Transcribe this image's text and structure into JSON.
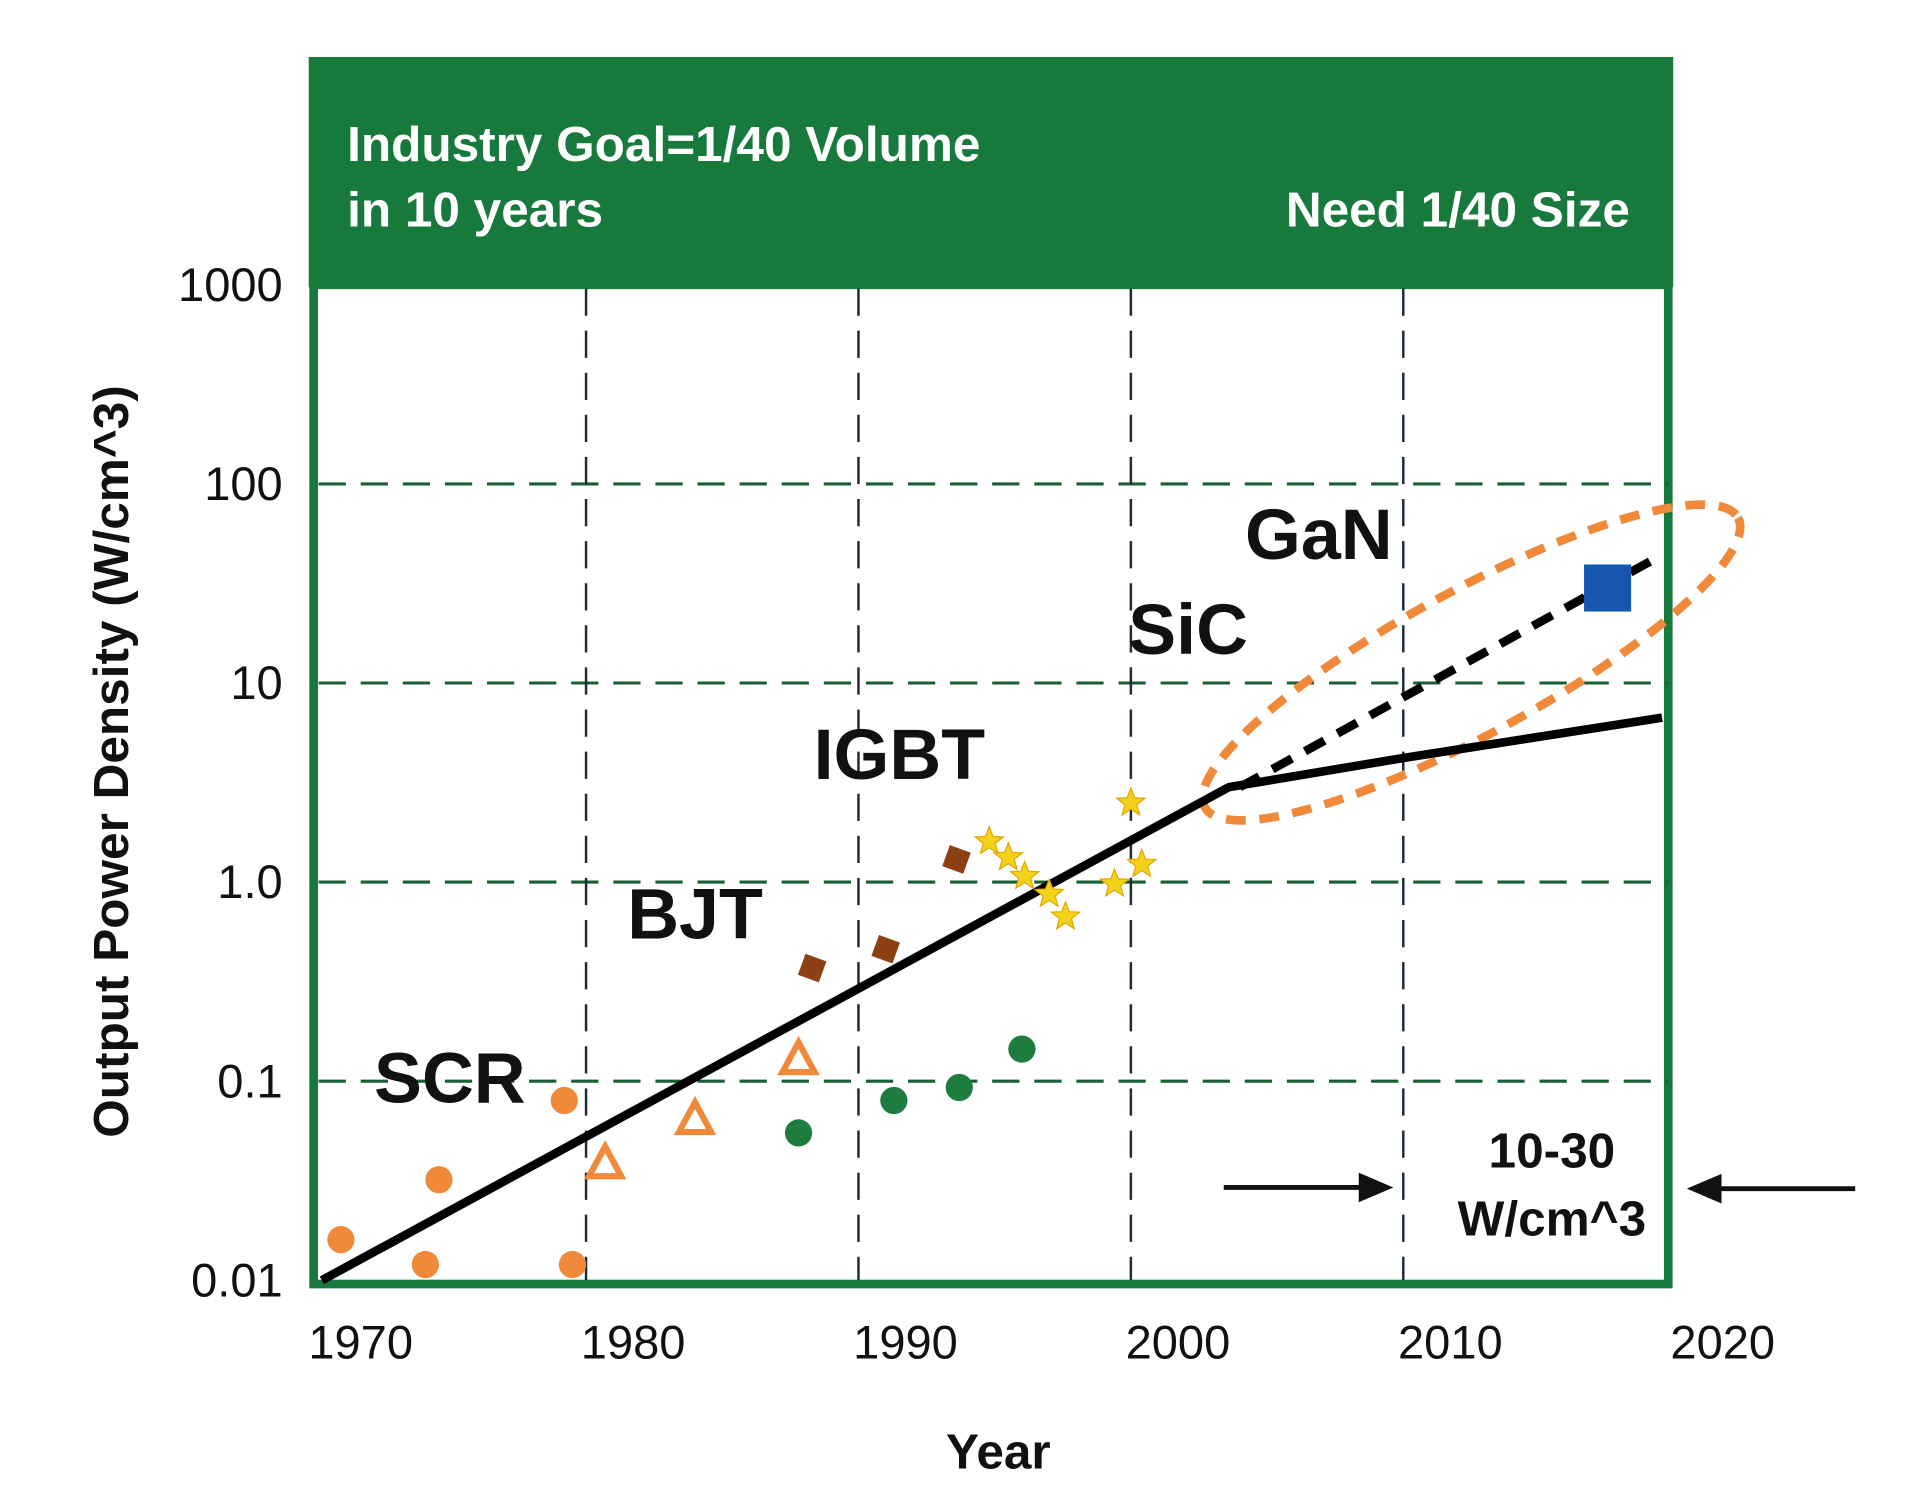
{
  "chart_data": {
    "type": "scatter",
    "header": {
      "left_line1": "Industry Goal=1/40 Volume",
      "left_line2": "in 10 years",
      "right": "Need 1/40 Size"
    },
    "xlabel": "Year",
    "ylabel": "Output Power Density (W/cm^3)",
    "xlim": [
      1970,
      2020
    ],
    "ylim": [
      0.01,
      1000
    ],
    "yscale": "log",
    "grid": true,
    "x_ticks": [
      "1970",
      "1980",
      "1990",
      "2000",
      "2010",
      "2020"
    ],
    "y_ticks": [
      {
        "value": 1000,
        "label": "1000"
      },
      {
        "value": 100,
        "label": "100"
      },
      {
        "value": 10,
        "label": "10"
      },
      {
        "value": 1,
        "label": "1.0"
      },
      {
        "value": 0.1,
        "label": "0.1"
      },
      {
        "value": 0.01,
        "label": "0.01"
      }
    ],
    "series": [
      {
        "marker": "circle",
        "color": "#f08a3a",
        "points": [
          [
            1971.0,
            0.016
          ],
          [
            1974.1,
            0.012
          ],
          [
            1974.6,
            0.032
          ],
          [
            1979.2,
            0.08
          ],
          [
            1979.5,
            0.012
          ]
        ]
      },
      {
        "marker": "triangle",
        "color": "#f08a3a",
        "points": [
          [
            1980.7,
            0.039
          ],
          [
            1984.0,
            0.065
          ],
          [
            1987.8,
            0.13
          ]
        ]
      },
      {
        "marker": "circle",
        "color": "#1e7d3e",
        "points": [
          [
            1987.8,
            0.055
          ],
          [
            1991.3,
            0.08
          ],
          [
            1993.7,
            0.093
          ],
          [
            1996.0,
            0.145
          ]
        ]
      },
      {
        "marker": "diamond",
        "color": "#8b3f12",
        "points": [
          [
            1988.3,
            0.37
          ],
          [
            1991.0,
            0.46
          ],
          [
            1993.6,
            1.3
          ]
        ]
      },
      {
        "marker": "star",
        "color": "#f5d21a",
        "points": [
          [
            1994.8,
            1.6
          ],
          [
            1995.5,
            1.33
          ],
          [
            1996.1,
            1.07
          ],
          [
            1997.0,
            0.87
          ],
          [
            1997.6,
            0.67
          ],
          [
            1999.4,
            0.98
          ],
          [
            2000.0,
            2.5
          ],
          [
            2000.4,
            1.23
          ]
        ]
      },
      {
        "marker": "square",
        "color": "#1556b0",
        "points": [
          [
            2017.5,
            30
          ]
        ]
      }
    ],
    "trend_solid": [
      [
        1970.3,
        0.01
      ],
      [
        2003.6,
        3.0
      ],
      [
        2010,
        4.2
      ],
      [
        2019.5,
        6.7
      ]
    ],
    "trend_dashed": [
      [
        2004,
        3.0
      ],
      [
        2019.5,
        44
      ]
    ],
    "device_labels": [
      {
        "text": "SCR",
        "x": 1975,
        "y": 0.078
      },
      {
        "text": "BJT",
        "x": 1984,
        "y": 0.52
      },
      {
        "text": "IGBT",
        "x": 1991.5,
        "y": 3.3
      },
      {
        "text": "SiC",
        "x": 2002.1,
        "y": 14
      },
      {
        "text": "GaN",
        "x": 2006.9,
        "y": 42
      }
    ],
    "annotation": {
      "line1": "10-30",
      "line2": "W/cm^3"
    },
    "colors": {
      "header": "#177a3c",
      "frame": "#177a3c",
      "grid_h": "#1a5e33",
      "grid_v": "#1d2b3a",
      "highlight": "#f08a3a"
    }
  }
}
